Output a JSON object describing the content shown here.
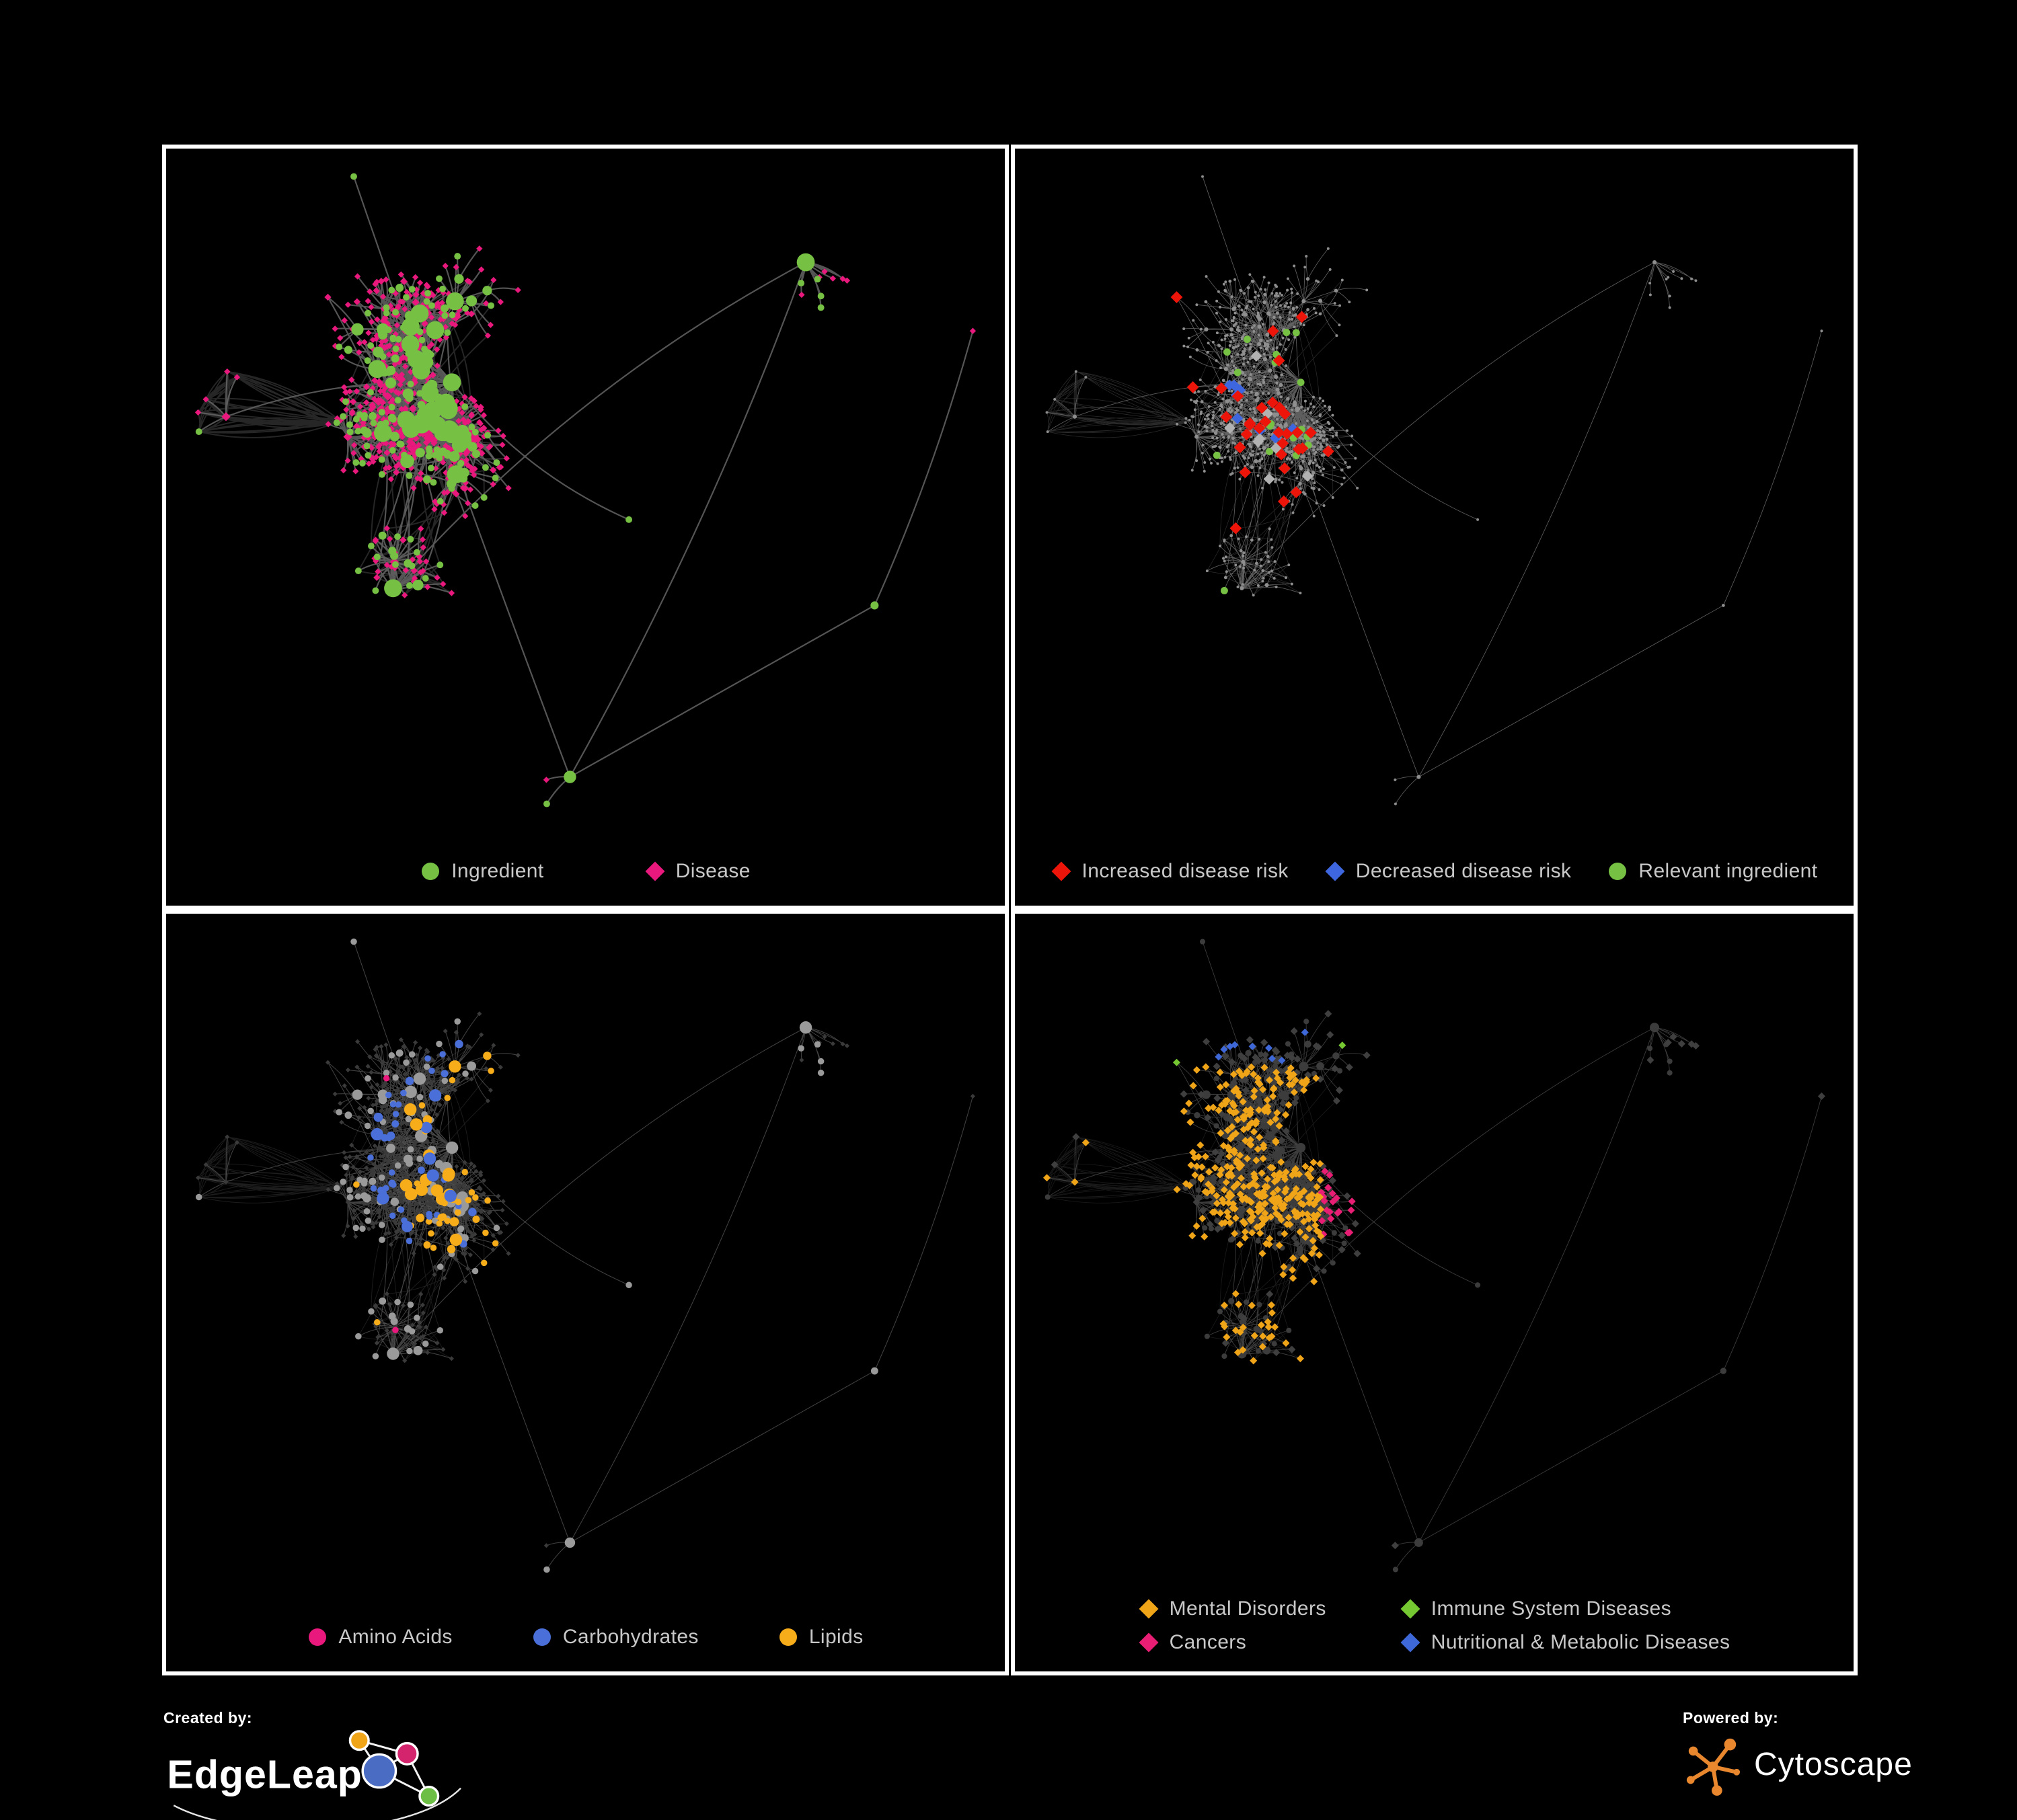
{
  "page": {
    "background": "#000000",
    "panel_border": "#FFFFFF"
  },
  "panels": [
    {
      "id": "ingredient-disease",
      "legend_layout": "row",
      "legend": [
        {
          "label": "Ingredient",
          "shape": "circle",
          "color": "#76C043"
        },
        {
          "label": "Disease",
          "shape": "diamond",
          "color": "#E8187C"
        }
      ],
      "style": {
        "edge_color": "#6A6A6A",
        "edge_width": 2.2,
        "edge_opacity": 0.8,
        "ingredient_color": "#76C043",
        "disease_color": "#E8187C"
      }
    },
    {
      "id": "disease-risk",
      "legend_layout": "row",
      "legend": [
        {
          "label": "Increased disease risk",
          "shape": "diamond",
          "color": "#ED1409"
        },
        {
          "label": "Decreased disease risk",
          "shape": "diamond",
          "color": "#3E66DE"
        },
        {
          "label": "Relevant ingredient",
          "shape": "circle",
          "color": "#76C043"
        }
      ],
      "style": {
        "edge_color": "#7D7D7D",
        "edge_width": 0.85,
        "edge_opacity": 0.75,
        "dot_color": "#8E8E8E",
        "neutral_color": "#B2B2B2",
        "increased_color": "#ED1409",
        "decreased_color": "#3E66DE",
        "ingredient_color": "#76C043"
      }
    },
    {
      "id": "nutrient-classes",
      "legend_layout": "row",
      "legend": [
        {
          "label": "Amino Acids",
          "shape": "circle",
          "color": "#E9187C"
        },
        {
          "label": "Carbohydrates",
          "shape": "circle",
          "color": "#4A6FD9"
        },
        {
          "label": "Lipids",
          "shape": "circle",
          "color": "#F7AC1A"
        }
      ],
      "style": {
        "edge_color": "#777777",
        "edge_width": 1.05,
        "edge_opacity": 0.55,
        "circle_color": "#9A9A9A",
        "diamond_color": "#3A3A3A",
        "amino_color": "#E9187C",
        "carb_color": "#4A6FD9",
        "lipid_color": "#F7AC1A"
      }
    },
    {
      "id": "disease-classes",
      "legend_layout": "grid",
      "legend": [
        {
          "label": "Mental Disorders",
          "shape": "diamond",
          "color": "#F0A519"
        },
        {
          "label": "Immune System Diseases",
          "shape": "diamond",
          "color": "#76C832"
        },
        {
          "label": "Cancers",
          "shape": "diamond",
          "color": "#E81E74"
        },
        {
          "label": "Nutritional & Metabolic Diseases",
          "shape": "diamond",
          "color": "#3E68D8"
        }
      ],
      "style": {
        "edge_color": "#858585",
        "edge_width": 0.9,
        "edge_opacity": 0.45,
        "circle_color": "#3C3C3C",
        "diamond_color": "#3F3F3F",
        "mental_color": "#F0A519",
        "immune_color": "#76C832",
        "cancer_color": "#E81E74",
        "nutritional_color": "#3E68D8"
      }
    }
  ],
  "footer": {
    "created_by": "Created by:",
    "edgeleap": "EdgeLeap",
    "powered_by": "Powered by:",
    "cytoscape": "Cytoscape",
    "edgeleap_colors": {
      "blue": "#4A6CC3",
      "orange": "#F0A519",
      "pink": "#D4246E",
      "green": "#6DBE45"
    },
    "cytoscape_orange": "#E8872E"
  },
  "network": {
    "seed": 42,
    "base_nodes": 560,
    "bursts": 11,
    "burst_max": 24,
    "cross_links": 50,
    "step": 46,
    "roots": [
      [
        0.17,
        0.4,
        3.0
      ],
      [
        0.4,
        0.36,
        3.2
      ],
      [
        0.34,
        0.6,
        2.6
      ],
      [
        0.58,
        0.52,
        1.6
      ],
      [
        0.76,
        0.22,
        1.2
      ],
      [
        0.52,
        0.82,
        1.5
      ],
      [
        0.83,
        0.62,
        1.2
      ],
      [
        0.3,
        0.12,
        1.3
      ],
      [
        0.93,
        0.3,
        0.9
      ]
    ],
    "webs": [
      [
        0.17,
        0.4,
        150,
        80
      ],
      [
        0.4,
        0.36,
        150,
        80
      ],
      [
        0.34,
        0.6,
        130,
        55
      ],
      [
        0.44,
        0.47,
        190,
        40
      ]
    ]
  }
}
